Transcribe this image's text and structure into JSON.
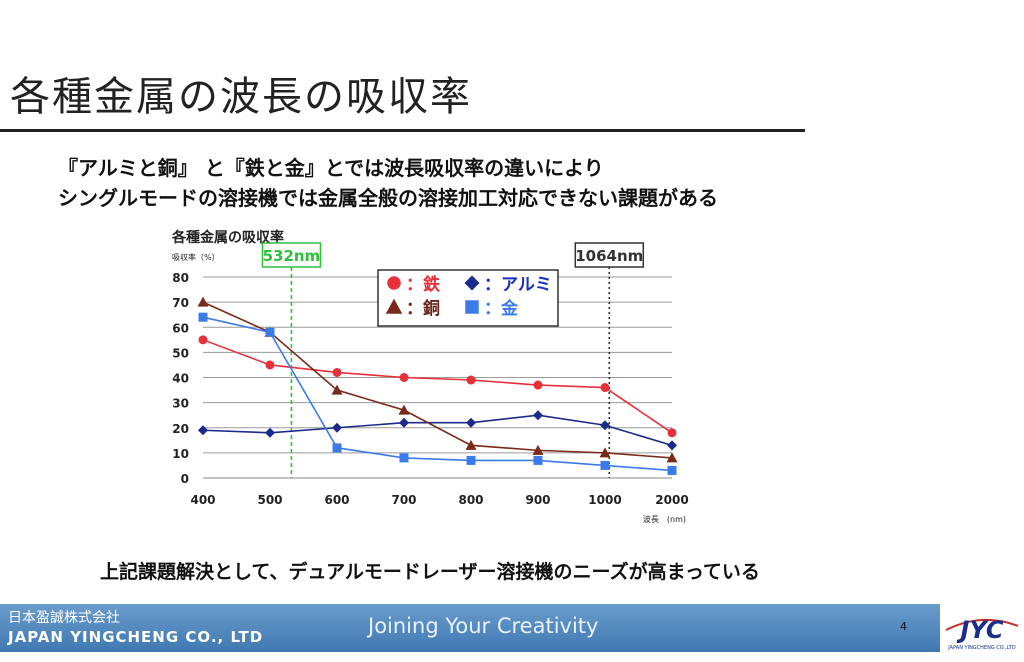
{
  "slide": {
    "title": "各種金属の波長の吸収率",
    "subtitle_line1": "『アルミと銅』 と『鉄と金』とでは波長吸収率の違いにより",
    "subtitle_line2": "シングルモードの溶接機では金属全般の溶接加工対応できない課題がある",
    "conclusion": "上記課題解決として、デュアルモードレーザー溶接機のニーズが高まっている"
  },
  "footer": {
    "company_jp": "日本盈誠株式会社",
    "company_en": "JAPAN YINGCHENG CO., LTD",
    "tagline": "Joining Your Creativity",
    "page_number": "4",
    "logo_text": "JYC",
    "logo_subtext": "JAPAN YINGCHENG CO.,LTD"
  },
  "chart_data": {
    "type": "line",
    "title": "各種金属の吸収率",
    "ylabel": "吸収率（%）",
    "xlabel": "波長　(nm)",
    "categories": [
      "400",
      "500",
      "600",
      "700",
      "800",
      "900",
      "1000",
      "2000"
    ],
    "ylim": [
      0,
      80
    ],
    "yticks": [
      0,
      10,
      20,
      30,
      40,
      50,
      60,
      70,
      80
    ],
    "grid": true,
    "legend_position": "top-center",
    "series": [
      {
        "name": "鉄",
        "marker": "circle",
        "color": "#e8303a",
        "values": [
          55,
          45,
          42,
          40,
          39,
          37,
          36,
          18
        ]
      },
      {
        "name": "アルミ",
        "marker": "diamond",
        "color": "#1b2a8c",
        "values": [
          19,
          18,
          20,
          22,
          22,
          25,
          21,
          13
        ]
      },
      {
        "name": "銅",
        "marker": "triangle",
        "color": "#7a2a1a",
        "values": [
          70,
          58,
          35,
          27,
          13,
          11,
          10,
          8
        ]
      },
      {
        "name": "金",
        "marker": "square",
        "color": "#3b7be8",
        "values": [
          64,
          58,
          12,
          8,
          7,
          7,
          5,
          3
        ]
      }
    ],
    "annotations": [
      {
        "label": "532nm",
        "at": 532,
        "color": "#2fbf3a",
        "style": "dashed"
      },
      {
        "label": "1064nm",
        "at": 1064,
        "color": "#333333",
        "style": "dotted"
      }
    ]
  }
}
